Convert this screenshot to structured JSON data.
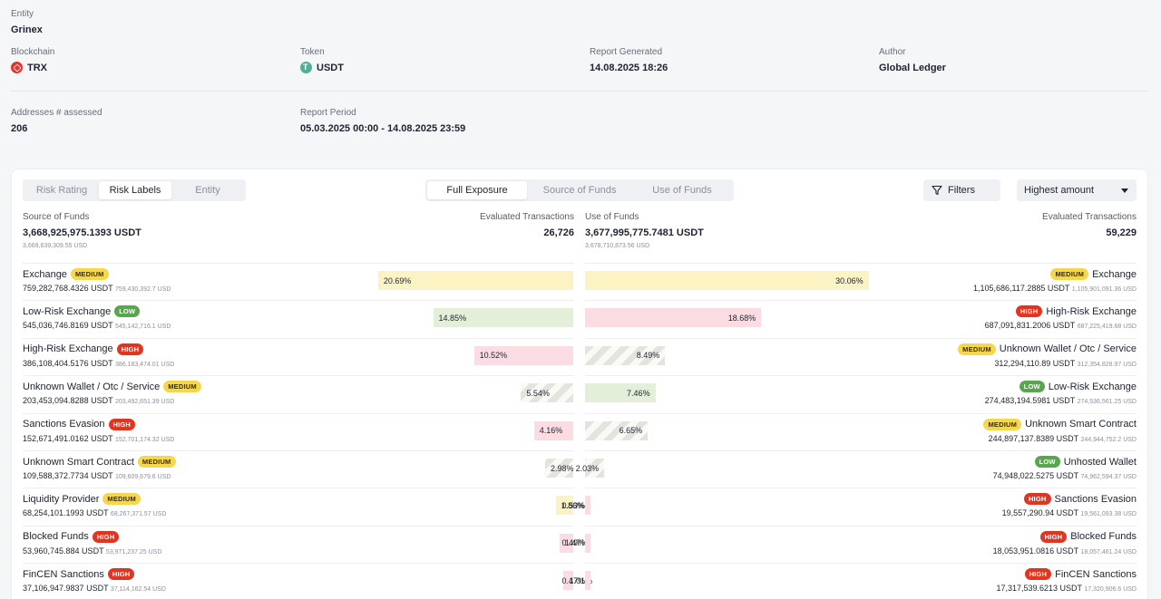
{
  "header": {
    "entity_label": "Entity",
    "entity_value": "Grinex",
    "blockchain_label": "Blockchain",
    "blockchain_value": "TRX",
    "token_label": "Token",
    "token_value": "USDT",
    "report_generated_label": "Report Generated",
    "report_generated_value": "14.08.2025 18:26",
    "author_label": "Author",
    "author_value": "Global Ledger",
    "addresses_label": "Addresses # assessed",
    "addresses_value": "206",
    "period_label": "Report Period",
    "period_value": "05.03.2025 00:00 - 14.08.2025 23:59"
  },
  "tabs_view": [
    "Risk Rating",
    "Risk Labels",
    "Entity"
  ],
  "tabs_view_active": 1,
  "tabs_flow": [
    "Full Exposure",
    "Source of Funds",
    "Use of Funds"
  ],
  "tabs_flow_active": 0,
  "filters_label": "Filters",
  "sort_label": "Highest amount",
  "source": {
    "title": "Source of Funds",
    "total": "3,668,925,975.1393 USDT",
    "total_sub": "3,669,639,309.55 USD",
    "eval_label": "Evaluated Transactions",
    "eval_value": "26,726"
  },
  "use": {
    "title": "Use of Funds",
    "total": "3,677,995,775.7481 USDT",
    "total_sub": "3,678,710,873.56 USD",
    "eval_label": "Evaluated Transactions",
    "eval_value": "59,229"
  },
  "source_rows": [
    {
      "name": "Exchange",
      "badge": "MEDIUM",
      "level": "medium",
      "amount": "759,282,768.4326 USDT",
      "usd": "759,430,392.7 USD",
      "pct_label": "20.69%",
      "pct": 20.69
    },
    {
      "name": "Low-Risk Exchange",
      "badge": "LOW",
      "level": "low",
      "amount": "545,036,746.8169 USDT",
      "usd": "545,142,716.1 USD",
      "pct_label": "14.85%",
      "pct": 14.85
    },
    {
      "name": "High-Risk Exchange",
      "badge": "HIGH",
      "level": "high",
      "amount": "386,108,404.5176 USDT",
      "usd": "386,183,474.01 USD",
      "pct_label": "10.52%",
      "pct": 10.52
    },
    {
      "name": "Unknown Wallet / Otc / Service",
      "badge": "MEDIUM",
      "level": "unknown",
      "amount": "203,453,094.8288 USDT",
      "usd": "203,492,651.39 USD",
      "pct_label": "5.54%",
      "pct": 5.54
    },
    {
      "name": "Sanctions Evasion",
      "badge": "HIGH",
      "level": "high",
      "amount": "152,671,491.0162 USDT",
      "usd": "152,701,174.32 USD",
      "pct_label": "4.16%",
      "pct": 4.16
    },
    {
      "name": "Unknown Smart Contract",
      "badge": "MEDIUM",
      "level": "unknown",
      "amount": "109,588,372.7734 USDT",
      "usd": "109,609,679.6 USD",
      "pct_label": "2.98%",
      "pct": 2.98
    },
    {
      "name": "Liquidity Provider",
      "badge": "MEDIUM",
      "level": "medium",
      "amount": "68,254,101.1993 USDT",
      "usd": "68,267,371.57 USD",
      "pct_label": "1.86%",
      "pct": 1.86
    },
    {
      "name": "Blocked Funds",
      "badge": "HIGH",
      "level": "high",
      "amount": "53,960,745.884 USDT",
      "usd": "53,971,237.25 USD",
      "pct_label": "1.47%",
      "pct": 1.47
    },
    {
      "name": "FinCEN Sanctions",
      "badge": "HIGH",
      "level": "high",
      "amount": "37,106,947.9837 USDT",
      "usd": "37,114,162.54 USD",
      "pct_label": "1.01%",
      "pct": 1.01
    }
  ],
  "use_rows": [
    {
      "name": "Exchange",
      "badge": "MEDIUM",
      "level": "medium",
      "amount": "1,105,686,117.2885 USDT",
      "usd": "1,105,901,091.36 USD",
      "pct_label": "30.06%",
      "pct": 30.06
    },
    {
      "name": "High-Risk Exchange",
      "badge": "HIGH",
      "level": "high",
      "amount": "687,091,831.2006 USDT",
      "usd": "687,225,419.68 USD",
      "pct_label": "18.68%",
      "pct": 18.68
    },
    {
      "name": "Unknown Wallet / Otc / Service",
      "badge": "MEDIUM",
      "level": "unknown",
      "amount": "312,294,110.89 USDT",
      "usd": "312,354,828.97 USD",
      "pct_label": "8.49%",
      "pct": 8.49
    },
    {
      "name": "Low-Risk Exchange",
      "badge": "LOW",
      "level": "low",
      "amount": "274,483,194.5981 USDT",
      "usd": "274,536,561.25 USD",
      "pct_label": "7.46%",
      "pct": 7.46
    },
    {
      "name": "Unknown Smart Contract",
      "badge": "MEDIUM",
      "level": "unknown",
      "amount": "244,897,137.8389 USDT",
      "usd": "244,944,752.2 USD",
      "pct_label": "6.65%",
      "pct": 6.65
    },
    {
      "name": "Unhosted Wallet",
      "badge": "LOW",
      "level": "unknown",
      "amount": "74,948,022.5275 USDT",
      "usd": "74,962,594.37 USD",
      "pct_label": "2.03%",
      "pct": 2.03
    },
    {
      "name": "Sanctions Evasion",
      "badge": "HIGH",
      "level": "high",
      "amount": "19,557,290.94 USDT",
      "usd": "19,561,093.38 USD",
      "pct_label": "0.53%",
      "pct": 0.53
    },
    {
      "name": "Blocked Funds",
      "badge": "HIGH",
      "level": "high",
      "amount": "18,053,951.0816 USDT",
      "usd": "18,057,461.24 USD",
      "pct_label": "0.49%",
      "pct": 0.49
    },
    {
      "name": "FinCEN Sanctions",
      "badge": "HIGH",
      "level": "high",
      "amount": "17,317,539.6213 USDT",
      "usd": "17,320,906.6 USD",
      "pct_label": "0.47%",
      "pct": 0.47
    }
  ]
}
